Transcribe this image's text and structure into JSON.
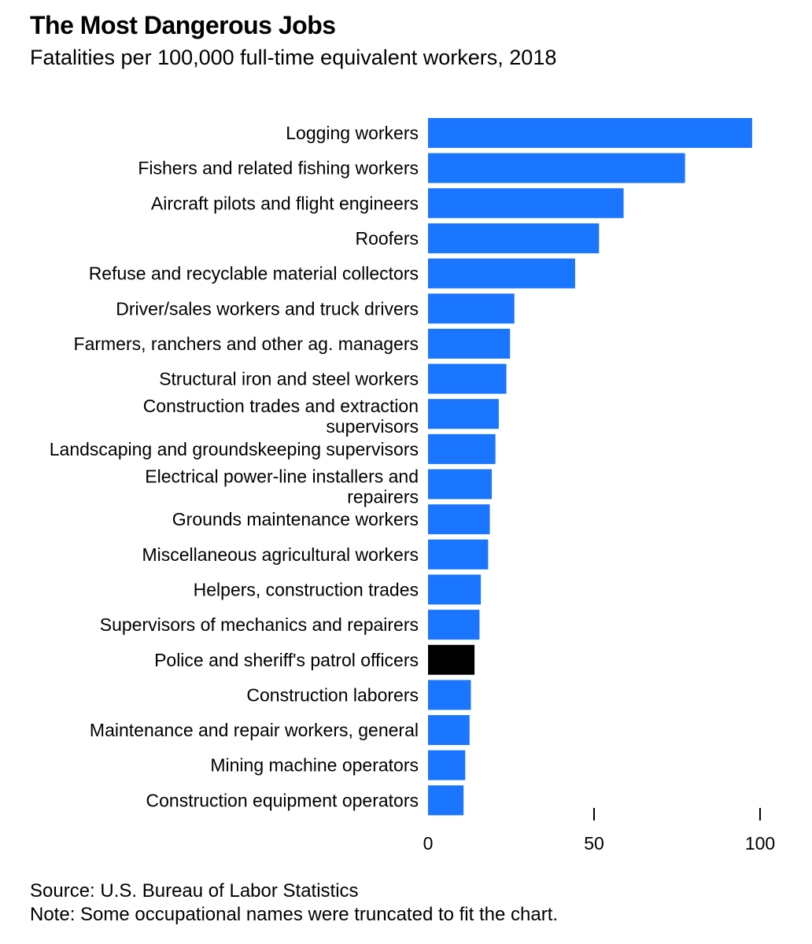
{
  "chart_data": {
    "type": "bar",
    "orientation": "horizontal",
    "title": "The Most Dangerous Jobs",
    "subtitle": "Fatalities per 100,000 full-time equivalent workers, 2018",
    "categories": [
      "Logging workers",
      "Fishers and related fishing workers",
      "Aircraft pilots and flight engineers",
      "Roofers",
      "Refuse and recyclable material collectors",
      "Driver/sales workers and truck drivers",
      "Farmers, ranchers and other ag. managers",
      "Structural iron and steel workers",
      "Construction trades and extraction supervisors",
      "Landscaping and groundskeeping supervisors",
      "Electrical power-line installers and repairers",
      "Grounds maintenance workers",
      "Miscellaneous agricultural workers",
      "Helpers, construction trades",
      "Supervisors of mechanics and repairers",
      "Police and sheriff's patrol officers",
      "Construction laborers",
      "Maintenance and repair workers, general",
      "Mining machine operators",
      "Construction equipment operators"
    ],
    "values": [
      97.6,
      77.4,
      58.9,
      51.5,
      44.3,
      26.0,
      24.7,
      23.6,
      21.3,
      20.3,
      19.2,
      18.6,
      18.1,
      15.9,
      15.5,
      14.0,
      12.9,
      12.5,
      11.2,
      10.7
    ],
    "highlight_index": 15,
    "bar_color": "#1a75ff",
    "highlight_color": "#000000",
    "xlim": [
      0,
      100
    ],
    "xticks": [
      0,
      50,
      100
    ],
    "grid": false,
    "legend": "none",
    "source": "Source: U.S. Bureau of Labor Statistics",
    "note": "Note: Some occupational names were truncated to fit the chart."
  }
}
